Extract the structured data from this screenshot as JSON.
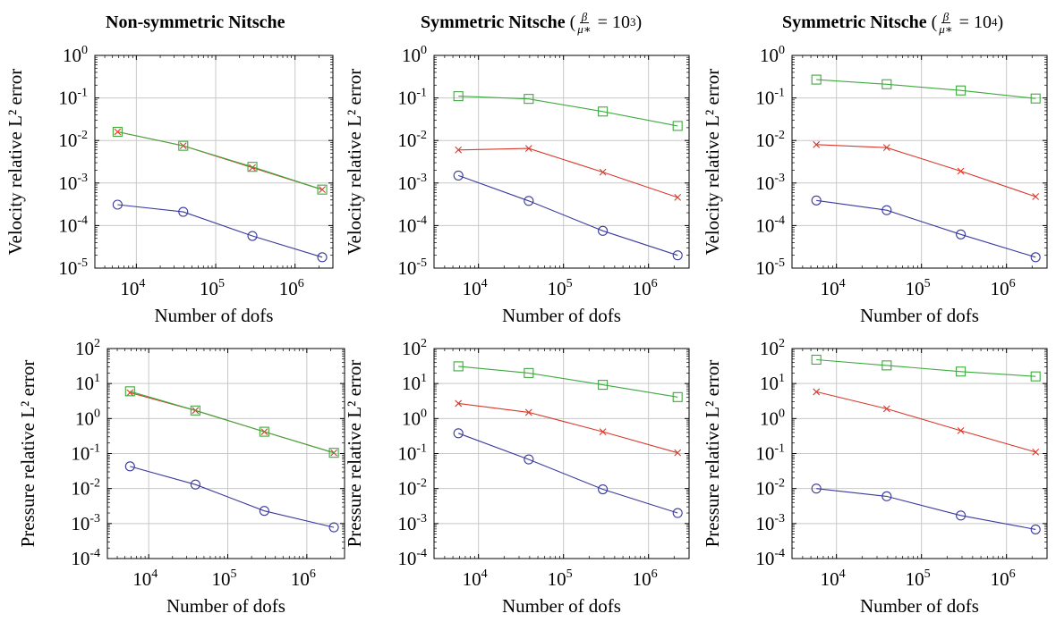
{
  "column_titles": [
    {
      "text": "Non-symmetric Nitsche"
    },
    {
      "text": "Symmetric Nitsche",
      "ratio_num": "β",
      "ratio_den": "μ∗",
      "ratio_value_base": "10",
      "ratio_value_exp": "3"
    },
    {
      "text": "Symmetric Nitsche",
      "ratio_num": "β",
      "ratio_den": "μ∗",
      "ratio_value_base": "10",
      "ratio_value_exp": "4"
    }
  ],
  "colors": {
    "blue": "#3a3a9e",
    "red": "#d83a2c",
    "green": "#3daa3d",
    "grid": "#c8c8c8"
  },
  "chart_data": [
    {
      "type": "line",
      "scale": "log-log",
      "xlabel": "Number of dofs",
      "ylabel": "Velocity relative L² error",
      "xlim": [
        3000,
        3000000
      ],
      "ylim": [
        1e-05,
        1
      ],
      "grid": true,
      "series": [
        {
          "color": "blue",
          "marker": "circle",
          "x": [
            5800,
            39000,
            290000,
            2200000
          ],
          "y": [
            0.00031,
            0.00021,
            5.7e-05,
            1.8e-05
          ]
        },
        {
          "color": "red",
          "marker": "x",
          "x": [
            5800,
            39000,
            290000,
            2200000
          ],
          "y": [
            0.016,
            0.0075,
            0.0023,
            0.0007
          ]
        },
        {
          "color": "green",
          "marker": "square",
          "x": [
            5800,
            39000,
            290000,
            2200000
          ],
          "y": [
            0.016,
            0.0075,
            0.0024,
            0.0007
          ]
        }
      ]
    },
    {
      "type": "line",
      "scale": "log-log",
      "xlabel": "Number of dofs",
      "ylabel": "Velocity relative L² error",
      "xlim": [
        3000,
        3000000
      ],
      "ylim": [
        1e-05,
        1
      ],
      "grid": true,
      "series": [
        {
          "color": "blue",
          "marker": "circle",
          "x": [
            5800,
            39000,
            290000,
            2200000
          ],
          "y": [
            0.0015,
            0.00038,
            7.5e-05,
            2e-05
          ]
        },
        {
          "color": "red",
          "marker": "x",
          "x": [
            5800,
            39000,
            290000,
            2200000
          ],
          "y": [
            0.006,
            0.0065,
            0.0018,
            0.00046
          ]
        },
        {
          "color": "green",
          "marker": "square",
          "x": [
            5800,
            39000,
            290000,
            2200000
          ],
          "y": [
            0.11,
            0.095,
            0.048,
            0.022
          ]
        }
      ]
    },
    {
      "type": "line",
      "scale": "log-log",
      "xlabel": "Number of dofs",
      "ylabel": "Velocity relative L² error",
      "xlim": [
        3000,
        3000000
      ],
      "ylim": [
        1e-05,
        1
      ],
      "grid": true,
      "series": [
        {
          "color": "blue",
          "marker": "circle",
          "x": [
            5800,
            39000,
            290000,
            2200000
          ],
          "y": [
            0.00039,
            0.00023,
            6.2e-05,
            1.8e-05
          ]
        },
        {
          "color": "red",
          "marker": "x",
          "x": [
            5800,
            39000,
            290000,
            2200000
          ],
          "y": [
            0.008,
            0.0068,
            0.0019,
            0.00048
          ]
        },
        {
          "color": "green",
          "marker": "square",
          "x": [
            5800,
            39000,
            290000,
            2200000
          ],
          "y": [
            0.27,
            0.21,
            0.15,
            0.097
          ]
        }
      ]
    },
    {
      "type": "line",
      "scale": "log-log",
      "xlabel": "Number of dofs",
      "ylabel": "Pressure relative L² error",
      "xlim": [
        3000,
        3000000
      ],
      "ylim": [
        0.0001,
        100
      ],
      "grid": true,
      "series": [
        {
          "color": "blue",
          "marker": "circle",
          "x": [
            5800,
            39000,
            290000,
            2200000
          ],
          "y": [
            0.043,
            0.013,
            0.0023,
            0.00078
          ]
        },
        {
          "color": "red",
          "marker": "x",
          "x": [
            5800,
            39000,
            290000,
            2200000
          ],
          "y": [
            5.5,
            1.7,
            0.42,
            0.105
          ]
        },
        {
          "color": "green",
          "marker": "square",
          "x": [
            5800,
            39000,
            290000,
            2200000
          ],
          "y": [
            6.0,
            1.7,
            0.42,
            0.105
          ]
        }
      ]
    },
    {
      "type": "line",
      "scale": "log-log",
      "xlabel": "Number of dofs",
      "ylabel": "Pressure relative L² error",
      "xlim": [
        3000,
        3000000
      ],
      "ylim": [
        0.0001,
        100
      ],
      "grid": true,
      "series": [
        {
          "color": "blue",
          "marker": "circle",
          "x": [
            5800,
            39000,
            290000,
            2200000
          ],
          "y": [
            0.38,
            0.068,
            0.0095,
            0.002
          ]
        },
        {
          "color": "red",
          "marker": "x",
          "x": [
            5800,
            39000,
            290000,
            2200000
          ],
          "y": [
            2.7,
            1.5,
            0.42,
            0.105
          ]
        },
        {
          "color": "green",
          "marker": "square",
          "x": [
            5800,
            39000,
            290000,
            2200000
          ],
          "y": [
            31,
            20,
            9.2,
            4.1
          ]
        }
      ]
    },
    {
      "type": "line",
      "scale": "log-log",
      "xlabel": "Number of dofs",
      "ylabel": "Pressure relative L² error",
      "xlim": [
        3000,
        3000000
      ],
      "ylim": [
        0.0001,
        100
      ],
      "grid": true,
      "series": [
        {
          "color": "blue",
          "marker": "circle",
          "x": [
            5800,
            39000,
            290000,
            2200000
          ],
          "y": [
            0.01,
            0.006,
            0.0017,
            0.00068
          ]
        },
        {
          "color": "red",
          "marker": "x",
          "x": [
            5800,
            39000,
            290000,
            2200000
          ],
          "y": [
            5.8,
            1.9,
            0.45,
            0.11
          ]
        },
        {
          "color": "green",
          "marker": "square",
          "x": [
            5800,
            39000,
            290000,
            2200000
          ],
          "y": [
            48,
            33,
            22,
            16
          ]
        }
      ]
    }
  ]
}
